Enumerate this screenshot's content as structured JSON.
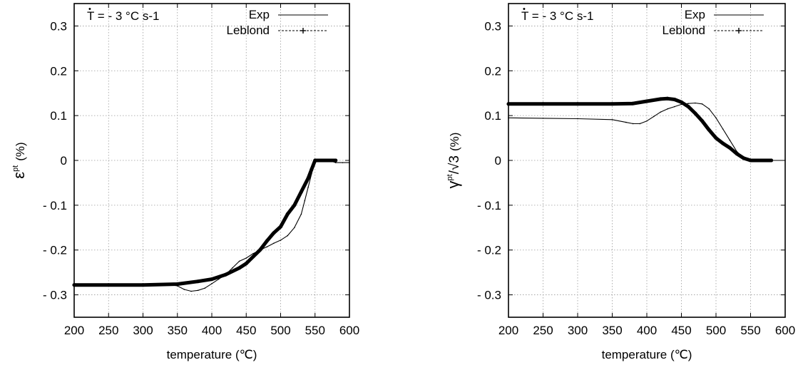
{
  "chart_data": [
    {
      "type": "line",
      "xlabel": "temperature (℃)",
      "ylabel": "(%)",
      "ylabel_symbol": "ε",
      "ylabel_superscript": "pt",
      "annotation": {
        "dot": "•",
        "prefix": "T",
        "text": " = - 3 °C s-1"
      },
      "xlim": [
        200,
        600
      ],
      "ylim": [
        -0.35,
        0.35
      ],
      "xticks": [
        200,
        250,
        300,
        350,
        400,
        450,
        500,
        550,
        600
      ],
      "xtick_labels": [
        "200",
        "250",
        "300",
        "350",
        "400",
        "450",
        "500",
        "550",
        "600"
      ],
      "yticks": [
        0.3,
        0.2,
        0.1,
        0,
        -0.1,
        -0.2,
        -0.3
      ],
      "ytick_labels": [
        "0.3",
        "0.2",
        "0.1",
        "0",
        "- 0.1",
        "- 0.2",
        "- 0.3"
      ],
      "grid": true,
      "legend_position": "top-right",
      "series": [
        {
          "name": "Exp",
          "style": "solid-thin",
          "x": [
            200,
            250,
            300,
            340,
            350,
            360,
            370,
            380,
            390,
            400,
            410,
            420,
            430,
            440,
            450,
            460,
            470,
            480,
            490,
            500,
            510,
            520,
            530,
            535,
            540,
            545,
            548,
            550,
            560,
            570,
            580,
            590,
            600
          ],
          "y": [
            -0.275,
            -0.278,
            -0.278,
            -0.278,
            -0.28,
            -0.288,
            -0.292,
            -0.29,
            -0.285,
            -0.275,
            -0.265,
            -0.255,
            -0.24,
            -0.225,
            -0.218,
            -0.208,
            -0.2,
            -0.193,
            -0.185,
            -0.178,
            -0.168,
            -0.15,
            -0.12,
            -0.09,
            -0.06,
            -0.03,
            -0.012,
            0,
            0,
            0,
            -0.005,
            -0.005,
            -0.005
          ]
        },
        {
          "name": "Leblond",
          "style": "dashed-markers",
          "x": [
            200,
            250,
            300,
            350,
            380,
            400,
            420,
            440,
            450,
            460,
            470,
            480,
            490,
            500,
            510,
            520,
            530,
            540,
            545,
            550,
            560,
            570,
            580
          ],
          "y": [
            -0.278,
            -0.278,
            -0.278,
            -0.276,
            -0.27,
            -0.265,
            -0.255,
            -0.24,
            -0.23,
            -0.215,
            -0.2,
            -0.18,
            -0.162,
            -0.148,
            -0.12,
            -0.1,
            -0.07,
            -0.04,
            -0.02,
            0,
            0,
            0,
            0
          ]
        }
      ]
    },
    {
      "type": "line",
      "xlabel": "temperature (℃)",
      "ylabel": "(%)",
      "ylabel_symbol": "γ",
      "ylabel_superscript": "pt",
      "ylabel_suffix": "/√3",
      "annotation": {
        "dot": "•",
        "prefix": "T",
        "text": " = - 3 °C s-1"
      },
      "xlim": [
        200,
        600
      ],
      "ylim": [
        -0.35,
        0.35
      ],
      "xticks": [
        200,
        250,
        300,
        350,
        400,
        450,
        500,
        550,
        600
      ],
      "xtick_labels": [
        "200",
        "250",
        "300",
        "350",
        "400",
        "450",
        "500",
        "550",
        "600"
      ],
      "yticks": [
        0.3,
        0.2,
        0.1,
        0,
        -0.1,
        -0.2,
        -0.3
      ],
      "ytick_labels": [
        "0.3",
        "0.2",
        "0.1",
        "0",
        "- 0.1",
        "- 0.2",
        "- 0.3"
      ],
      "grid": true,
      "legend_position": "top-right",
      "series": [
        {
          "name": "Exp",
          "style": "solid-thin",
          "x": [
            200,
            250,
            300,
            350,
            370,
            380,
            390,
            400,
            410,
            420,
            430,
            440,
            450,
            460,
            470,
            480,
            490,
            500,
            510,
            520,
            530,
            540,
            550,
            560,
            580,
            600
          ],
          "y": [
            0.095,
            0.094,
            0.093,
            0.091,
            0.085,
            0.082,
            0.082,
            0.088,
            0.098,
            0.108,
            0.115,
            0.12,
            0.125,
            0.127,
            0.128,
            0.126,
            0.115,
            0.095,
            0.07,
            0.045,
            0.02,
            0.005,
            0,
            0,
            0,
            0
          ]
        },
        {
          "name": "Leblond",
          "style": "dashed-markers",
          "x": [
            200,
            250,
            300,
            350,
            380,
            400,
            420,
            430,
            440,
            450,
            460,
            470,
            480,
            490,
            500,
            510,
            520,
            530,
            540,
            550,
            560,
            570,
            580
          ],
          "y": [
            0.126,
            0.126,
            0.126,
            0.126,
            0.127,
            0.132,
            0.137,
            0.138,
            0.136,
            0.13,
            0.12,
            0.105,
            0.088,
            0.068,
            0.05,
            0.038,
            0.028,
            0.015,
            0.005,
            0,
            0,
            0,
            0
          ]
        }
      ]
    }
  ]
}
